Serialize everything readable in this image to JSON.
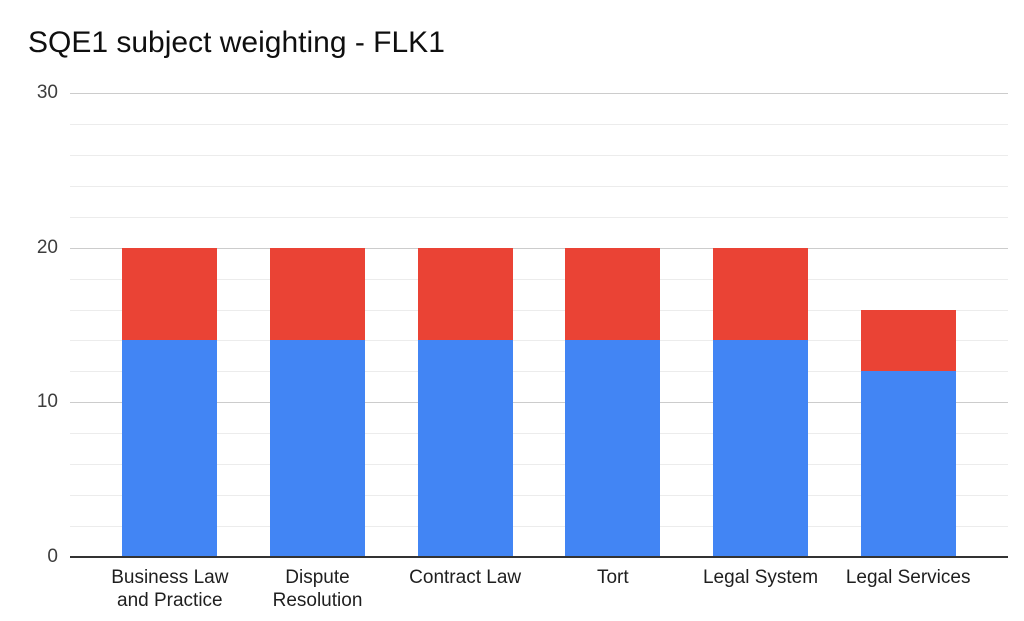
{
  "chart_data": {
    "type": "bar",
    "stacked": true,
    "title": "SQE1 subject weighting - FLK1",
    "categories": [
      "Business Law and Practice",
      "Dispute Resolution",
      "Contract Law",
      "Tort",
      "Legal System",
      "Legal Services"
    ],
    "series": [
      {
        "name": "lower-segment-blue",
        "color": "#4285F4",
        "values": [
          14,
          14,
          14,
          14,
          14,
          12
        ]
      },
      {
        "name": "upper-segment-red",
        "color": "#EA4335",
        "values": [
          6,
          6,
          6,
          6,
          6,
          4
        ]
      }
    ],
    "totals": [
      20,
      20,
      20,
      20,
      20,
      16
    ],
    "xlabel": "",
    "ylabel": "",
    "ylim": [
      0,
      30
    ],
    "yticks": [
      0,
      10,
      20,
      30
    ],
    "minor_gridline_step": 2,
    "grid": true,
    "legend_position": "none",
    "colors": {
      "axis_line": "#333333",
      "major_gridline": "#cccccc",
      "minor_gridline": "#ececec",
      "title_text": "#0f0f0f",
      "tick_text": "#3d3d3d"
    }
  }
}
